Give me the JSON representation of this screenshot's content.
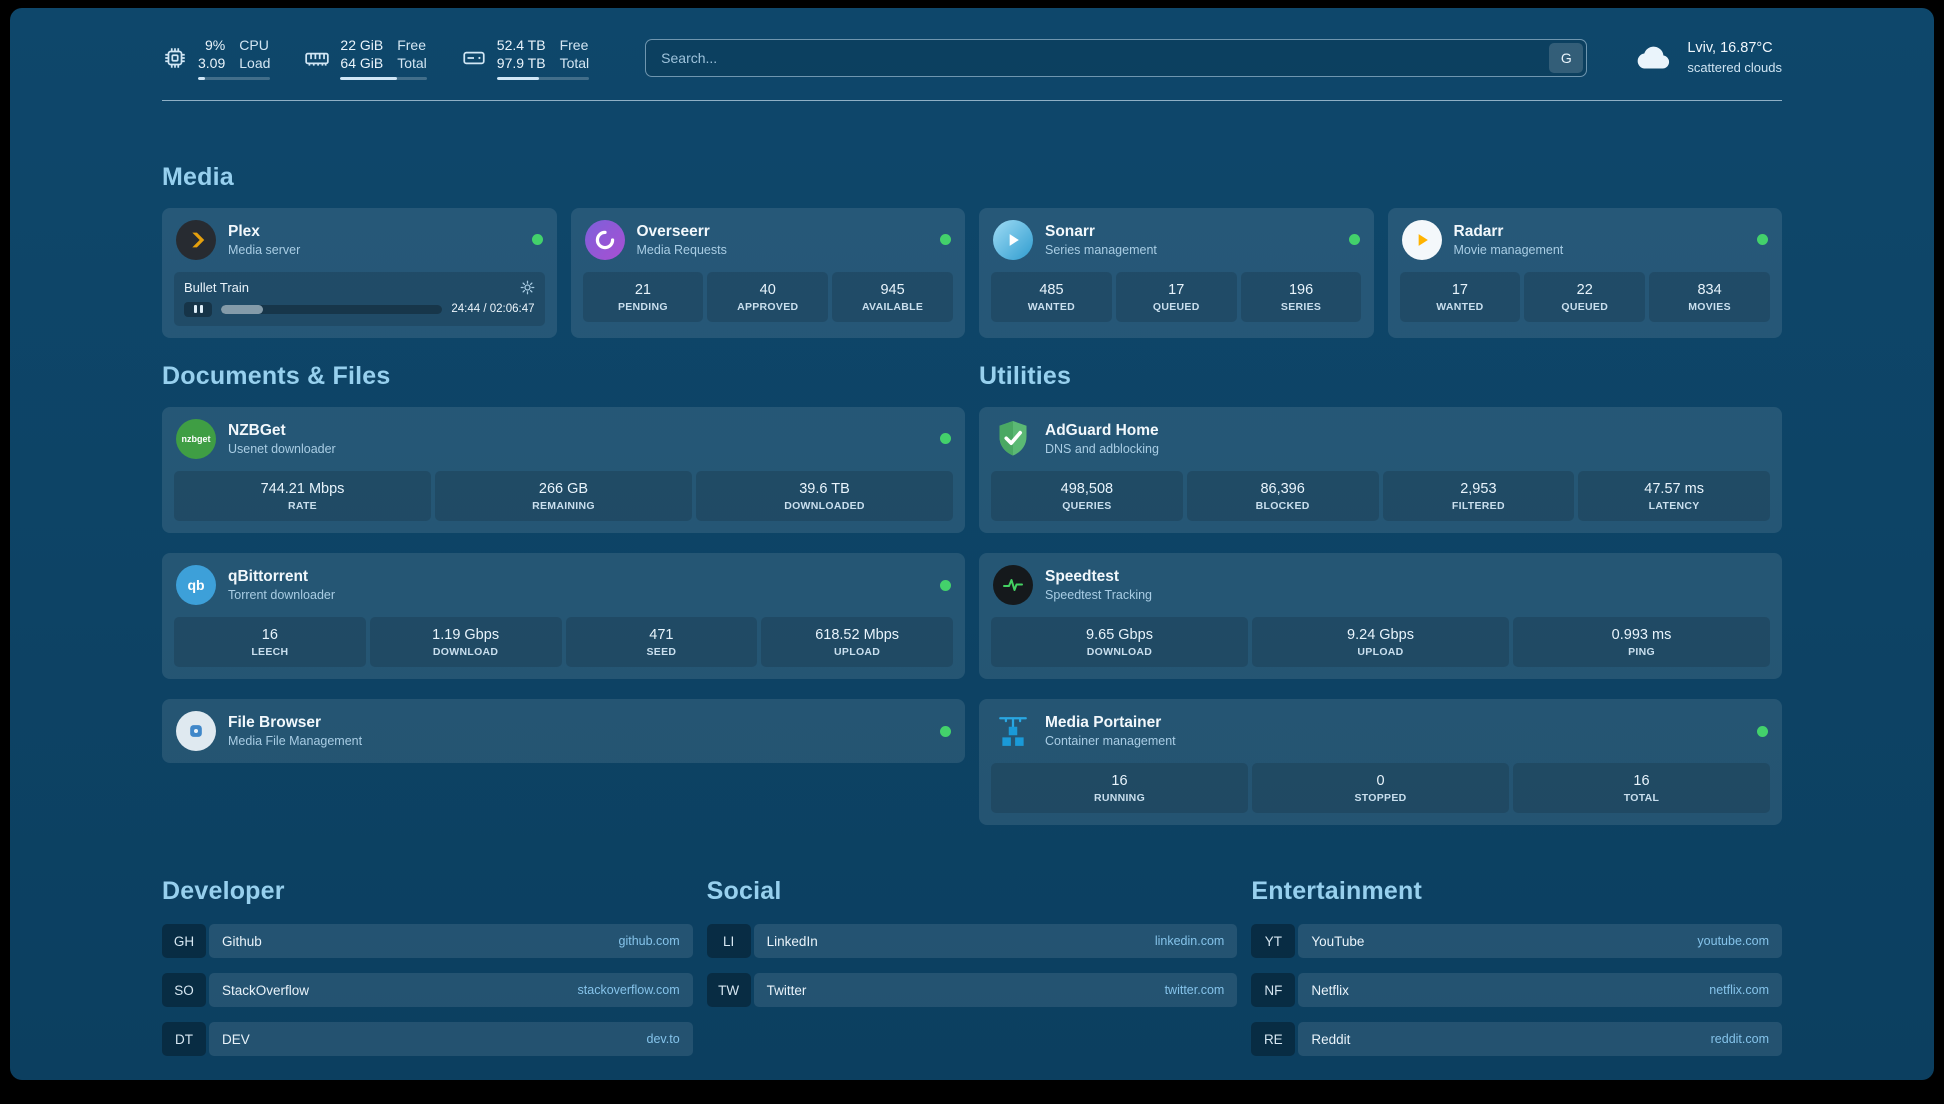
{
  "topbar": {
    "resources": {
      "cpu": {
        "v1": "9%",
        "v2": "3.09",
        "l1": "CPU",
        "l2": "Load",
        "progress": 9
      },
      "memory": {
        "v1": "22 GiB",
        "v2": "64 GiB",
        "l1": "Free",
        "l2": "Total",
        "progress": 66
      },
      "disk": {
        "v1": "52.4 TB",
        "v2": "97.9 TB",
        "l1": "Free",
        "l2": "Total",
        "progress": 46
      }
    },
    "search": {
      "placeholder": "Search...",
      "button": "G"
    },
    "weather": {
      "line1": "Lviv, 16.87°C",
      "line2": "scattered clouds"
    }
  },
  "media": {
    "title": "Media",
    "plex": {
      "name": "Plex",
      "subtitle": "Media server",
      "player": {
        "title": "Bullet Train",
        "time": "24:44 / 02:06:47",
        "progress": 19
      }
    },
    "overseerr": {
      "name": "Overseerr",
      "subtitle": "Media Requests",
      "stats": [
        {
          "v": "21",
          "l": "PENDING"
        },
        {
          "v": "40",
          "l": "APPROVED"
        },
        {
          "v": "945",
          "l": "AVAILABLE"
        }
      ]
    },
    "sonarr": {
      "name": "Sonarr",
      "subtitle": "Series management",
      "stats": [
        {
          "v": "485",
          "l": "WANTED"
        },
        {
          "v": "17",
          "l": "QUEUED"
        },
        {
          "v": "196",
          "l": "SERIES"
        }
      ]
    },
    "radarr": {
      "name": "Radarr",
      "subtitle": "Movie management",
      "stats": [
        {
          "v": "17",
          "l": "WANTED"
        },
        {
          "v": "22",
          "l": "QUEUED"
        },
        {
          "v": "834",
          "l": "MOVIES"
        }
      ]
    }
  },
  "documents": {
    "title": "Documents & Files",
    "nzbget": {
      "name": "NZBGet",
      "subtitle": "Usenet downloader",
      "icon_text": "nzbget",
      "stats": [
        {
          "v": "744.21 Mbps",
          "l": "RATE"
        },
        {
          "v": "266 GB",
          "l": "REMAINING"
        },
        {
          "v": "39.6 TB",
          "l": "DOWNLOADED"
        }
      ]
    },
    "qbittorrent": {
      "name": "qBittorrent",
      "subtitle": "Torrent downloader",
      "icon_text": "qb",
      "stats": [
        {
          "v": "16",
          "l": "LEECH"
        },
        {
          "v": "1.19 Gbps",
          "l": "DOWNLOAD"
        },
        {
          "v": "471",
          "l": "SEED"
        },
        {
          "v": "618.52 Mbps",
          "l": "UPLOAD"
        }
      ]
    },
    "filebrowser": {
      "name": "File Browser",
      "subtitle": "Media File Management"
    }
  },
  "utilities": {
    "title": "Utilities",
    "adguard": {
      "name": "AdGuard Home",
      "subtitle": "DNS and adblocking",
      "stats": [
        {
          "v": "498,508",
          "l": "QUERIES"
        },
        {
          "v": "86,396",
          "l": "BLOCKED"
        },
        {
          "v": "2,953",
          "l": "FILTERED"
        },
        {
          "v": "47.57 ms",
          "l": "LATENCY"
        }
      ]
    },
    "speedtest": {
      "name": "Speedtest",
      "subtitle": "Speedtest Tracking",
      "stats": [
        {
          "v": "9.65 Gbps",
          "l": "DOWNLOAD"
        },
        {
          "v": "9.24 Gbps",
          "l": "UPLOAD"
        },
        {
          "v": "0.993 ms",
          "l": "PING"
        }
      ]
    },
    "portainer": {
      "name": "Media Portainer",
      "subtitle": "Container management",
      "stats": [
        {
          "v": "16",
          "l": "RUNNING"
        },
        {
          "v": "0",
          "l": "STOPPED"
        },
        {
          "v": "16",
          "l": "TOTAL"
        }
      ]
    }
  },
  "bookmarks": {
    "developer": {
      "title": "Developer",
      "items": [
        {
          "abbr": "GH",
          "name": "Github",
          "url": "github.com"
        },
        {
          "abbr": "SO",
          "name": "StackOverflow",
          "url": "stackoverflow.com"
        },
        {
          "abbr": "DT",
          "name": "DEV",
          "url": "dev.to"
        }
      ]
    },
    "social": {
      "title": "Social",
      "items": [
        {
          "abbr": "LI",
          "name": "LinkedIn",
          "url": "linkedin.com"
        },
        {
          "abbr": "TW",
          "name": "Twitter",
          "url": "twitter.com"
        }
      ]
    },
    "entertainment": {
      "title": "Entertainment",
      "items": [
        {
          "abbr": "YT",
          "name": "YouTube",
          "url": "youtube.com"
        },
        {
          "abbr": "NF",
          "name": "Netflix",
          "url": "netflix.com"
        },
        {
          "abbr": "RE",
          "name": "Reddit",
          "url": "reddit.com"
        }
      ]
    }
  },
  "colors": {
    "status_online": "#43d16b",
    "accent": "#97d0ee"
  }
}
